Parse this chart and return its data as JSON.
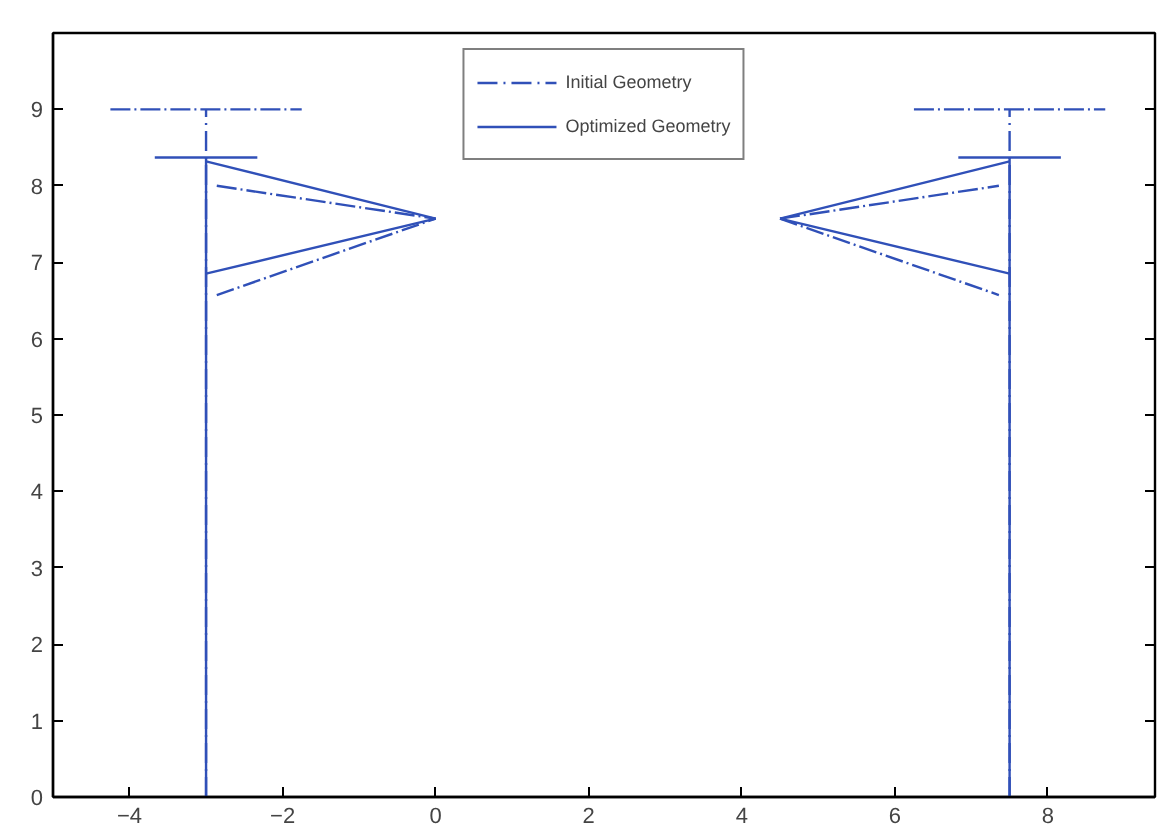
{
  "chart_data": {
    "type": "line",
    "xlim": [
      -5,
      9.4
    ],
    "ylim": [
      0,
      10
    ],
    "xticks": [
      -4,
      -2,
      0,
      2,
      4,
      6,
      8
    ],
    "yticks": [
      0,
      1,
      2,
      3,
      4,
      5,
      6,
      7,
      8,
      9
    ],
    "grid": false,
    "legend": "top",
    "marker": "none",
    "series": [
      {
        "name": "Initial Geometry",
        "color": "#3050b8",
        "line_style": "dashdot",
        "x": [
          -3,
          -3
        ],
        "values": [
          0,
          9
        ]
      },
      {
        "color": "#3050b8",
        "line_style": "dashdot",
        "x": [
          -4.25,
          -1.75
        ],
        "values": [
          9,
          9
        ]
      },
      {
        "color": "#3050b8",
        "line_style": "dashdot",
        "x": [
          -2.86,
          0
        ],
        "values": [
          8.0,
          7.57
        ]
      },
      {
        "color": "#3050b8",
        "line_style": "dashdot",
        "x": [
          -2.86,
          0
        ],
        "values": [
          6.57,
          7.57
        ]
      },
      {
        "color": "#3050b8",
        "line_style": "dashdot",
        "x": [
          7.5,
          7.5
        ],
        "values": [
          0,
          9
        ]
      },
      {
        "color": "#3050b8",
        "line_style": "dashdot",
        "x": [
          6.25,
          8.75
        ],
        "values": [
          9,
          9
        ]
      },
      {
        "color": "#3050b8",
        "line_style": "dashdot",
        "x": [
          4.5,
          7.36
        ],
        "values": [
          7.57,
          8.0
        ]
      },
      {
        "color": "#3050b8",
        "line_style": "dashdot",
        "x": [
          4.5,
          7.36
        ],
        "values": [
          7.57,
          6.57
        ]
      },
      {
        "name": "Optimized Geometry",
        "color": "#3050b8",
        "line_style": "solid",
        "x": [
          -3,
          -3
        ],
        "values": [
          0,
          8.37
        ]
      },
      {
        "color": "#3050b8",
        "line_style": "solid",
        "x": [
          -3.67,
          -2.33
        ],
        "values": [
          8.37,
          8.37
        ]
      },
      {
        "color": "#3050b8",
        "line_style": "solid",
        "x": [
          -3,
          0
        ],
        "values": [
          8.32,
          7.57
        ]
      },
      {
        "color": "#3050b8",
        "line_style": "solid",
        "x": [
          -3,
          0
        ],
        "values": [
          6.85,
          7.57
        ]
      },
      {
        "color": "#3050b8",
        "line_style": "solid",
        "x": [
          7.5,
          7.5
        ],
        "values": [
          0,
          8.37
        ]
      },
      {
        "color": "#3050b8",
        "line_style": "solid",
        "x": [
          6.83,
          8.17
        ],
        "values": [
          8.37,
          8.37
        ]
      },
      {
        "color": "#3050b8",
        "line_style": "solid",
        "x": [
          4.5,
          7.5
        ],
        "values": [
          7.57,
          8.32
        ]
      },
      {
        "color": "#3050b8",
        "line_style": "solid",
        "x": [
          4.5,
          7.5
        ],
        "values": [
          7.57,
          6.85
        ]
      }
    ]
  }
}
